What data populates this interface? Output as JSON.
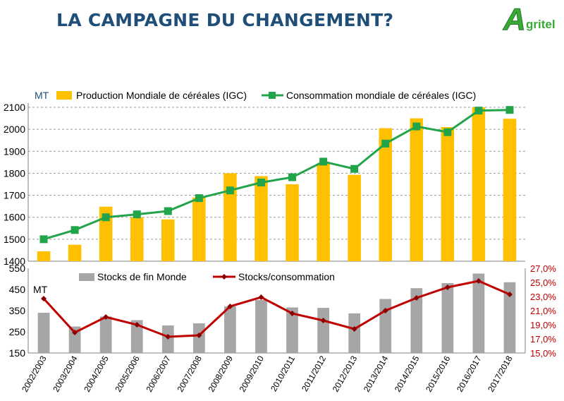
{
  "page": {
    "title": "LA CAMPAGNE DU CHANGEMENT?"
  },
  "logo": {
    "letter": "A",
    "text": "gritel",
    "color": "#3aaa35"
  },
  "chart_data": [
    {
      "type": "bar+line",
      "unit_label": "MT",
      "categories": [
        "2002/2003",
        "2003/2004",
        "2004/2005",
        "2005/2006",
        "2006/2007",
        "2007/2008",
        "2008/2009",
        "2009/2010",
        "2010/2011",
        "2011/2012",
        "2012/2013",
        "2013/2014",
        "2014/2015",
        "2015/2016",
        "2016/2017",
        "2017/2018"
      ],
      "ylim": [
        1400,
        2100
      ],
      "yticks": [
        "1400",
        "1500",
        "1600",
        "1700",
        "1800",
        "1900",
        "2000",
        "2100"
      ],
      "grid": true,
      "legend_position": "top",
      "series": [
        {
          "name": "Production Mondiale de céréales (IGC)",
          "kind": "bar",
          "color": "#ffc000",
          "values": [
            1445,
            1475,
            1648,
            1600,
            1590,
            1690,
            1800,
            1787,
            1750,
            1845,
            1793,
            2005,
            2050,
            2010,
            2100,
            2048
          ]
        },
        {
          "name": "Consommation mondiale de céréales (IGC)",
          "kind": "line",
          "color": "#22a54a",
          "values": [
            1500,
            1542,
            1600,
            1613,
            1628,
            1687,
            1722,
            1758,
            1782,
            1853,
            1820,
            1935,
            2013,
            1987,
            2085,
            2088
          ]
        }
      ]
    },
    {
      "type": "bar+line",
      "unit_label": "MT",
      "categories": [
        "2002/2003",
        "2003/2004",
        "2004/2005",
        "2005/2006",
        "2006/2007",
        "2007/2008",
        "2008/2009",
        "2009/2010",
        "2010/2011",
        "2011/2012",
        "2012/2013",
        "2013/2014",
        "2014/2015",
        "2015/2016",
        "2016/2017",
        "2017/2018"
      ],
      "ylim": [
        150,
        550
      ],
      "yticks": [
        "150",
        "250",
        "350",
        "450",
        "550"
      ],
      "y2lim": [
        15,
        27
      ],
      "y2ticks": [
        "15,0%",
        "17,0%",
        "19,0%",
        "21,0%",
        "23,0%",
        "25,0%",
        "27,0%"
      ],
      "legend_position": "top",
      "series": [
        {
          "name": "Stocks de fin Monde",
          "kind": "bar",
          "axis": "left",
          "color": "#a6a6a6",
          "values": [
            340,
            275,
            322,
            305,
            280,
            290,
            370,
            400,
            365,
            363,
            337,
            405,
            456,
            480,
            525,
            484
          ]
        },
        {
          "name": "Stocks/consommation",
          "kind": "line",
          "axis": "right",
          "color": "#c00000",
          "values": [
            22.7,
            17.9,
            20.1,
            19.0,
            17.3,
            17.5,
            21.6,
            22.9,
            20.6,
            19.6,
            18.4,
            21.0,
            22.8,
            24.3,
            25.2,
            23.3
          ]
        }
      ]
    }
  ]
}
